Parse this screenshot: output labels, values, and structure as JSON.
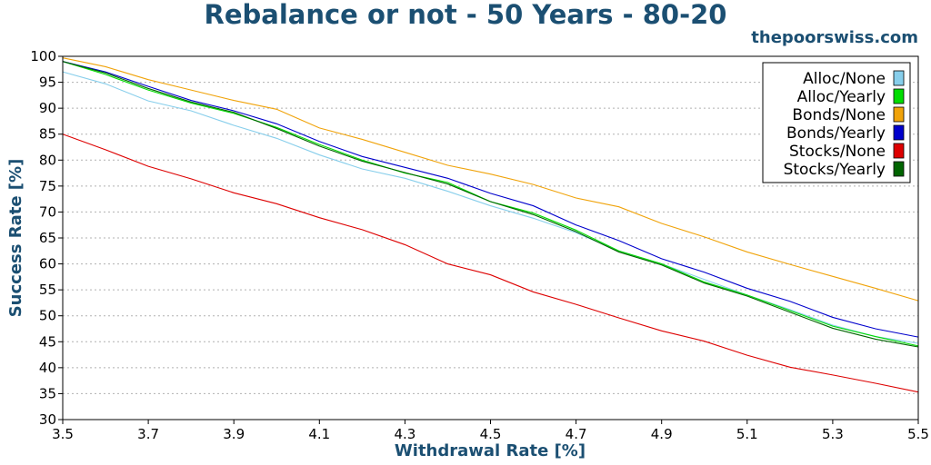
{
  "chart_data": {
    "type": "line",
    "title": "Rebalance or not - 50 Years - 80-20",
    "source_label": "thepoorswiss.com",
    "xlabel": "Withdrawal Rate [%]",
    "ylabel": "Success Rate [%]",
    "xlim": [
      3.5,
      5.5
    ],
    "ylim": [
      30,
      100
    ],
    "xticks": [
      "3.5",
      "3.7",
      "3.9",
      "4.1",
      "4.3",
      "4.5",
      "4.7",
      "4.9",
      "5.1",
      "5.3",
      "5.5"
    ],
    "yticks": [
      "30",
      "35",
      "40",
      "45",
      "50",
      "55",
      "60",
      "65",
      "70",
      "75",
      "80",
      "85",
      "90",
      "95",
      "100"
    ],
    "grid": "horizontal",
    "legend_position": "top-right",
    "x": [
      3.5,
      3.6,
      3.7,
      3.8,
      3.9,
      4.0,
      4.1,
      4.2,
      4.3,
      4.4,
      4.5,
      4.6,
      4.7,
      4.8,
      4.9,
      5.0,
      5.1,
      5.2,
      5.3,
      5.4,
      5.5
    ],
    "series": [
      {
        "name": "Alloc/None",
        "color": "#87ceeb",
        "values": [
          97,
          94.7,
          91.4,
          89.5,
          86.7,
          84.2,
          81,
          78.3,
          76.5,
          74,
          71.2,
          68.8,
          66,
          62.5,
          60,
          57,
          54,
          51.2,
          48.2,
          46,
          44.7
        ]
      },
      {
        "name": "Alloc/Yearly",
        "color": "#00dd00",
        "values": [
          99,
          96.5,
          93.5,
          91,
          89,
          86.3,
          83,
          80,
          77.5,
          75.7,
          72,
          69.8,
          66.5,
          62.5,
          60,
          56.5,
          54,
          51,
          48,
          46,
          44.2
        ]
      },
      {
        "name": "Bonds/None",
        "color": "#f0a30a",
        "values": [
          99.7,
          98,
          95.5,
          93.5,
          91.5,
          89.8,
          86.2,
          84,
          81.5,
          79,
          77.3,
          75.3,
          72.7,
          71,
          67.8,
          65.2,
          62.3,
          59.9,
          57.6,
          55.3,
          52.9
        ]
      },
      {
        "name": "Bonds/Yearly",
        "color": "#0000cc",
        "values": [
          99,
          97,
          94.2,
          91.5,
          89.5,
          87,
          83.6,
          80.7,
          78.6,
          76.5,
          73.6,
          71.2,
          67.5,
          64.5,
          61,
          58.4,
          55.3,
          52.8,
          49.7,
          47.5,
          45.9
        ]
      },
      {
        "name": "Stocks/None",
        "color": "#dd0000",
        "values": [
          85,
          82,
          78.8,
          76.4,
          73.7,
          71.6,
          68.9,
          66.6,
          63.7,
          60,
          57.9,
          54.6,
          52.2,
          49.6,
          47.1,
          45.1,
          42.4,
          40.1,
          38.6,
          37,
          35.3
        ]
      },
      {
        "name": "Stocks/Yearly",
        "color": "#006400",
        "values": [
          99,
          96.8,
          93.8,
          91.2,
          89.2,
          86.1,
          82.7,
          79.8,
          77.6,
          75.4,
          72,
          69.5,
          66.2,
          62.3,
          59.8,
          56.3,
          53.8,
          50.7,
          47.6,
          45.5,
          44
        ]
      }
    ]
  }
}
